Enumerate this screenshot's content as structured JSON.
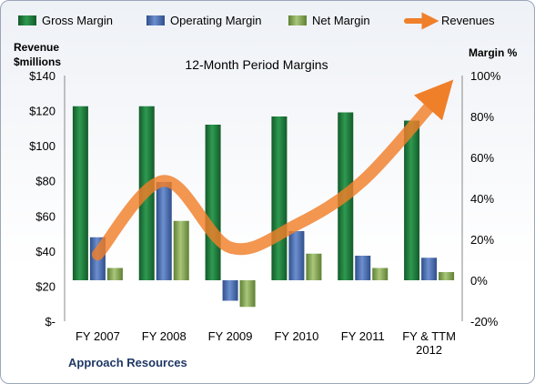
{
  "chart_data": {
    "type": "bar",
    "title": "12-Month Period Margins",
    "company": "Approach Resources",
    "categories": [
      [
        "FY 2007"
      ],
      [
        "FY 2008"
      ],
      [
        "FY 2009"
      ],
      [
        "FY 2010"
      ],
      [
        "FY 2011"
      ],
      [
        "FY & TTM",
        "2012"
      ]
    ],
    "left_axis": {
      "label_lines": [
        "Revenue",
        "$millions"
      ],
      "min": 0,
      "max": 140,
      "step": 20,
      "tick_labels": [
        "$-",
        "$20",
        "$40",
        "$60",
        "$80",
        "$100",
        "$120",
        "$140"
      ]
    },
    "right_axis": {
      "label": "Margin %",
      "min": -20,
      "max": 100,
      "step": 20,
      "tick_labels": [
        "-20%",
        "0%",
        "20%",
        "40%",
        "60%",
        "80%",
        "100%"
      ]
    },
    "legend_placement": "top",
    "series": [
      {
        "name": "Gross Margin",
        "type": "bar",
        "axis": "right",
        "color": "#1e7b3c",
        "values": [
          85,
          85,
          76,
          80,
          82,
          78
        ]
      },
      {
        "name": "Operating Margin",
        "type": "bar",
        "axis": "right",
        "color": "#4a6fb0",
        "values": [
          21,
          48,
          -10,
          24,
          12,
          11
        ]
      },
      {
        "name": "Net Margin",
        "type": "bar",
        "axis": "right",
        "color": "#8aab5a",
        "values": [
          6,
          29,
          -13,
          13,
          6,
          4
        ]
      },
      {
        "name": "Revenues",
        "type": "line",
        "axis": "left",
        "color": "#f07f2a",
        "values": [
          38,
          80,
          42,
          55,
          80,
          128
        ]
      }
    ],
    "grid": false
  }
}
